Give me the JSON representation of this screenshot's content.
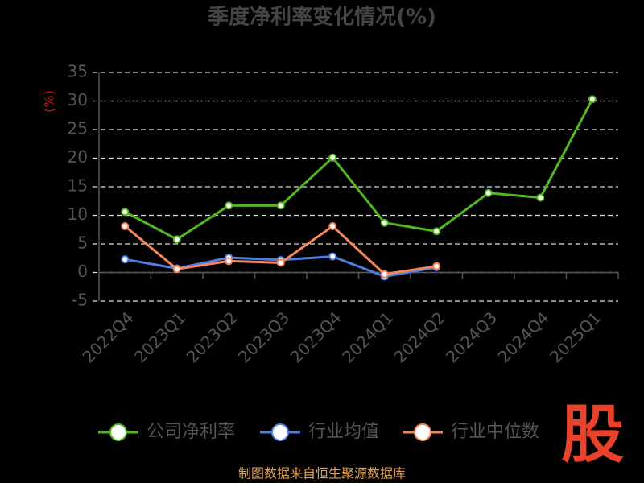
{
  "chart_data": {
    "type": "line",
    "title": "季度净利率变化情况(%)",
    "y_label": "(%)",
    "categories": [
      "2022Q4",
      "2023Q1",
      "2023Q2",
      "2023Q3",
      "2023Q4",
      "2024Q1",
      "2024Q2",
      "2024Q3",
      "2024Q4",
      "2025Q1"
    ],
    "series": [
      {
        "name": "公司净利率",
        "color": "#52b81e",
        "values": [
          10.6,
          5.8,
          11.7,
          11.7,
          20.1,
          8.7,
          7.2,
          13.9,
          13.1,
          30.3
        ]
      },
      {
        "name": "行业均值",
        "color": "#4f7fe0",
        "values": [
          2.3,
          0.7,
          2.6,
          2.2,
          2.8,
          -0.7,
          0.9,
          null,
          null,
          null
        ]
      },
      {
        "name": "行业中位数",
        "color": "#f5855b",
        "values": [
          8.1,
          0.6,
          2.0,
          1.7,
          8.1,
          -0.3,
          1.1,
          null,
          null,
          null
        ]
      }
    ],
    "ylim": [
      -5,
      35
    ],
    "yticks": [
      -5,
      0,
      5,
      10,
      15,
      20,
      25,
      30,
      35
    ],
    "grid": true,
    "source": "制图数据来自恒生聚源数据库",
    "logo": "股"
  }
}
